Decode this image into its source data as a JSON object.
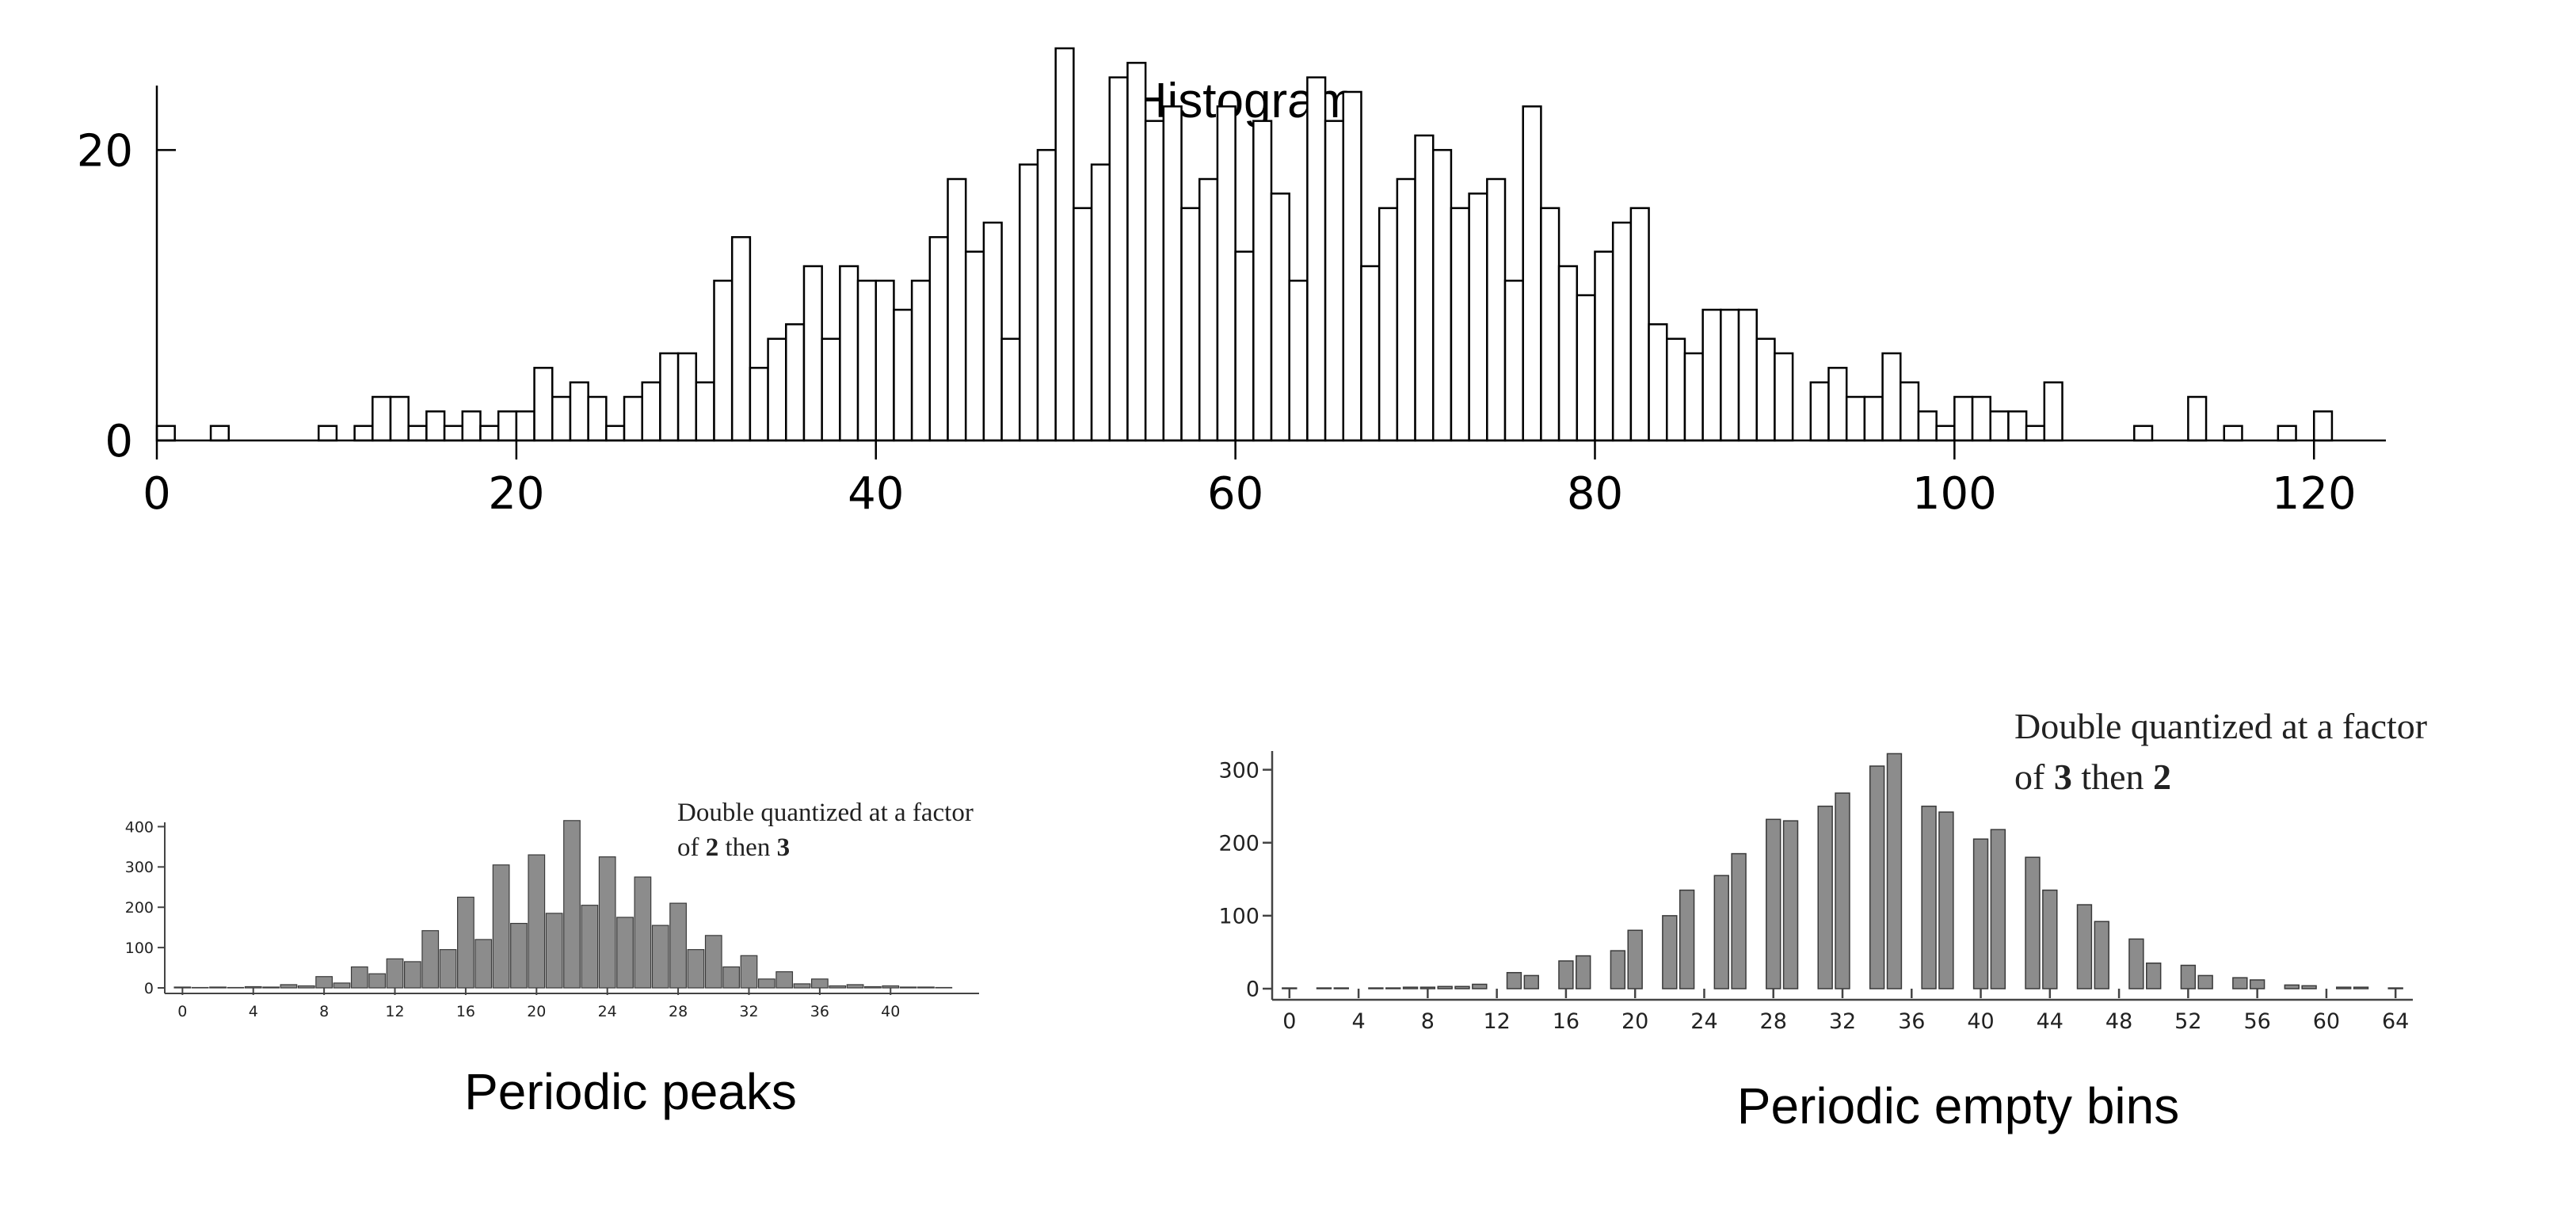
{
  "top": {
    "title": "Histogram",
    "chart_data": {
      "type": "bar",
      "title": "Histogram",
      "xlim": [
        0,
        124
      ],
      "ylim": [
        0,
        30
      ],
      "x_ticks": [
        "0",
        "20",
        "40",
        "60",
        "80",
        "100",
        "120"
      ],
      "y_ticks": [
        "0",
        "20"
      ],
      "x": [
        0,
        1,
        2,
        3,
        4,
        5,
        6,
        7,
        8,
        9,
        10,
        11,
        12,
        13,
        14,
        15,
        16,
        17,
        18,
        19,
        20,
        21,
        22,
        23,
        24,
        25,
        26,
        27,
        28,
        29,
        30,
        31,
        32,
        33,
        34,
        35,
        36,
        37,
        38,
        39,
        40,
        41,
        42,
        43,
        44,
        45,
        46,
        47,
        48,
        49,
        50,
        51,
        52,
        53,
        54,
        55,
        56,
        57,
        58,
        59,
        60,
        61,
        62,
        63,
        64,
        65,
        66,
        67,
        68,
        69,
        70,
        71,
        72,
        73,
        74,
        75,
        76,
        77,
        78,
        79,
        80,
        81,
        82,
        83,
        84,
        85,
        86,
        87,
        88,
        89,
        90,
        91,
        92,
        93,
        94,
        95,
        96,
        97,
        98,
        99,
        100,
        101,
        102,
        103,
        104,
        105,
        106,
        107,
        108,
        109,
        110,
        111,
        112,
        113,
        114,
        115,
        116,
        117,
        118,
        119,
        120
      ],
      "values": [
        1,
        0,
        0,
        1,
        0,
        0,
        0,
        0,
        0,
        1,
        0,
        1,
        3,
        3,
        1,
        2,
        1,
        2,
        1,
        2,
        2,
        5,
        3,
        4,
        3,
        1,
        3,
        4,
        6,
        6,
        4,
        11,
        14,
        5,
        7,
        8,
        12,
        7,
        12,
        11,
        11,
        9,
        11,
        14,
        18,
        13,
        15,
        7,
        19,
        20,
        27,
        16,
        19,
        25,
        26,
        22,
        23,
        16,
        18,
        23,
        13,
        22,
        17,
        11,
        25,
        22,
        24,
        12,
        16,
        18,
        21,
        20,
        16,
        17,
        18,
        11,
        23,
        16,
        12,
        10,
        13,
        15,
        16,
        8,
        7,
        6,
        9,
        9,
        9,
        7,
        6,
        0,
        4,
        5,
        3,
        3,
        6,
        4,
        2,
        1,
        3,
        3,
        2,
        2,
        1,
        4,
        0,
        0,
        0,
        0,
        1,
        0,
        0,
        3,
        0,
        1,
        0,
        0,
        1,
        0,
        2
      ]
    }
  },
  "bottom_left": {
    "caption": "Periodic peaks",
    "note_line1": "Double quantized at a factor",
    "note_of": "of",
    "note_first": "2",
    "note_then": "then",
    "note_second": "3",
    "chart_data": {
      "type": "bar",
      "xlim": [
        -1,
        45
      ],
      "ylim": [
        0,
        450
      ],
      "x_ticks": [
        "0",
        "4",
        "8",
        "12",
        "16",
        "20",
        "24",
        "28",
        "32",
        "36",
        "40"
      ],
      "y_ticks": [
        "0",
        "100",
        "200",
        "300",
        "400"
      ],
      "x": [
        0,
        1,
        2,
        3,
        4,
        5,
        6,
        7,
        8,
        9,
        10,
        11,
        12,
        13,
        14,
        15,
        16,
        17,
        18,
        19,
        20,
        21,
        22,
        23,
        24,
        25,
        26,
        27,
        28,
        29,
        30,
        31,
        32,
        33,
        34,
        35,
        36,
        37,
        38,
        39,
        40,
        41,
        42,
        43
      ],
      "values": [
        2,
        1,
        2,
        1,
        3,
        2,
        8,
        5,
        28,
        12,
        52,
        35,
        72,
        65,
        142,
        95,
        225,
        120,
        305,
        160,
        330,
        185,
        415,
        205,
        325,
        175,
        275,
        155,
        210,
        95,
        130,
        52,
        80,
        22,
        40,
        10,
        22,
        5,
        8,
        3,
        5,
        2,
        2,
        1
      ]
    }
  },
  "bottom_right": {
    "caption": "Periodic empty bins",
    "note_line1": "Double quantized at a factor",
    "note_of": "of",
    "note_first": "3",
    "note_then": "then",
    "note_second": "2",
    "chart_data": {
      "type": "bar",
      "xlim": [
        -1,
        65
      ],
      "ylim": [
        0,
        330
      ],
      "x_ticks": [
        "0",
        "4",
        "8",
        "12",
        "16",
        "20",
        "24",
        "28",
        "32",
        "36",
        "40",
        "44",
        "48",
        "52",
        "56",
        "60",
        "64"
      ],
      "y_ticks": [
        "0",
        "100",
        "200",
        "300"
      ],
      "x": [
        0,
        1,
        2,
        3,
        4,
        5,
        6,
        7,
        8,
        9,
        10,
        11,
        12,
        13,
        14,
        15,
        16,
        17,
        18,
        19,
        20,
        21,
        22,
        23,
        24,
        25,
        26,
        27,
        28,
        29,
        30,
        31,
        32,
        33,
        34,
        35,
        36,
        37,
        38,
        39,
        40,
        41,
        42,
        43,
        44,
        45,
        46,
        47,
        48,
        49,
        50,
        51,
        52,
        53,
        54,
        55,
        56,
        57,
        58,
        59,
        60,
        61,
        62,
        63,
        64
      ],
      "values": [
        1,
        0,
        1,
        1,
        0,
        1,
        1,
        2,
        2,
        3,
        3,
        6,
        0,
        22,
        18,
        0,
        38,
        45,
        0,
        52,
        80,
        0,
        100,
        135,
        0,
        155,
        185,
        0,
        232,
        230,
        0,
        250,
        268,
        0,
        305,
        322,
        0,
        250,
        242,
        0,
        205,
        218,
        0,
        180,
        135,
        0,
        115,
        92,
        0,
        68,
        35,
        0,
        32,
        18,
        0,
        15,
        12,
        0,
        5,
        4,
        0,
        2,
        2,
        0,
        1
      ]
    }
  },
  "colors": {
    "outline_bar_fill": "#ffffff",
    "outline_bar_stroke": "#000000",
    "gray_bar_fill": "#8c8c8c",
    "gray_bar_stroke": "#3a3a3a",
    "axis": "#000000",
    "small_axis": "#444444"
  }
}
